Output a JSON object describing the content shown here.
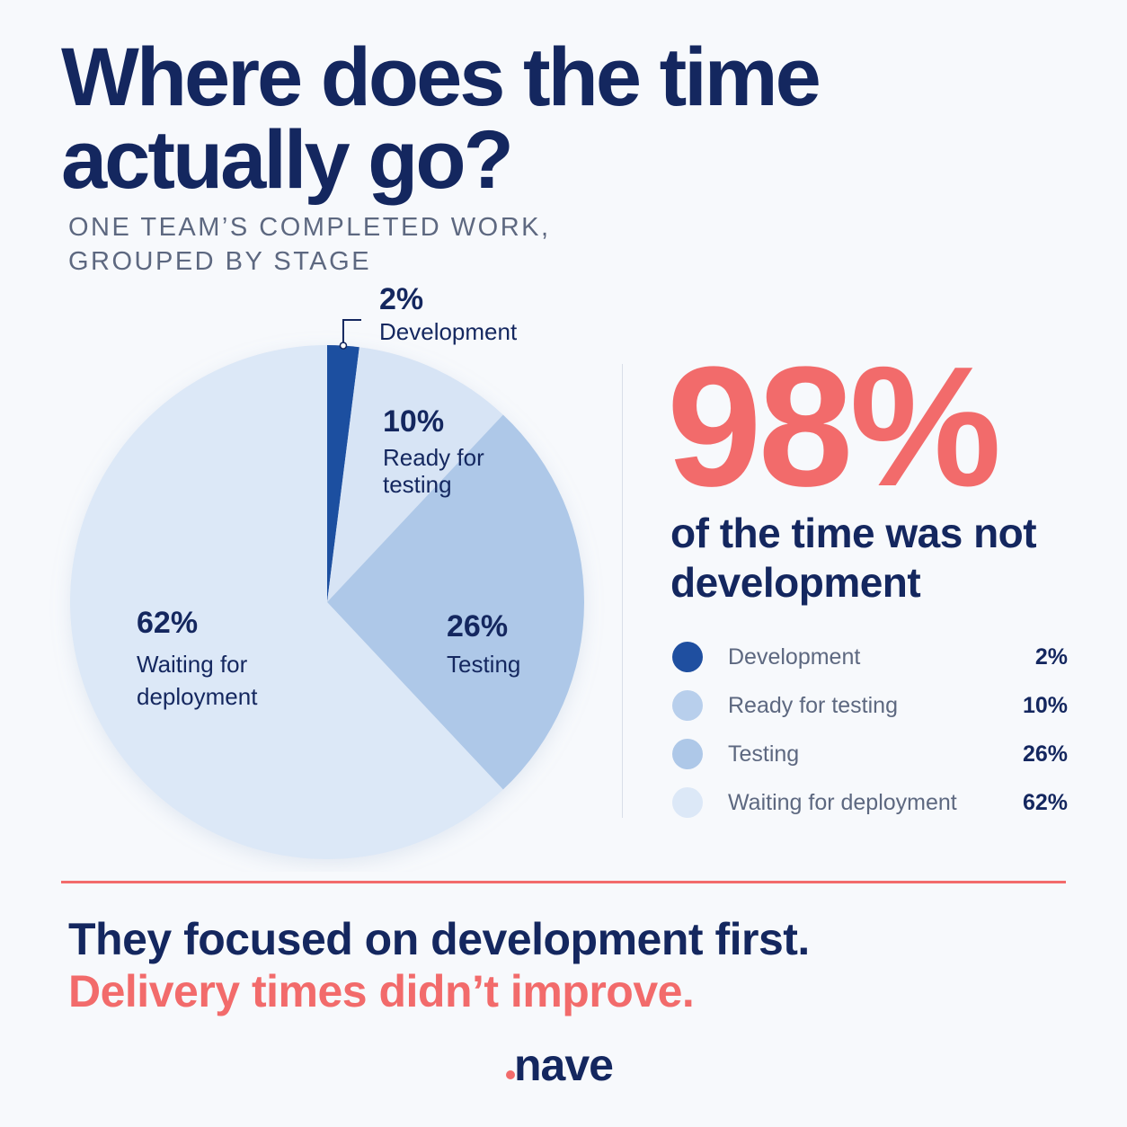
{
  "title": "Where does the time actually go?",
  "subtitle_line1": "ONE TEAM’S COMPLETED WORK,",
  "subtitle_line2": "GROUPED BY STAGE",
  "chart_data": {
    "type": "pie",
    "categories": [
      "Development",
      "Ready for testing",
      "Testing",
      "Waiting for deployment"
    ],
    "values": [
      2,
      10,
      26,
      62
    ],
    "value_labels": [
      "2%",
      "10%",
      "26%",
      "62%"
    ],
    "slice_labels": [
      [
        "Development"
      ],
      [
        "Ready for",
        "testing"
      ],
      [
        "Testing"
      ],
      [
        "Waiting for",
        "deployment"
      ]
    ],
    "colors": [
      "#1f4fa0",
      "#d7e4f5",
      "#aec8e8",
      "#dce8f7"
    ],
    "start_angle_deg": 0,
    "direction": "clockwise"
  },
  "highlight": {
    "value": "98%",
    "caption": "of the time was not development"
  },
  "legend": [
    {
      "label": "Development",
      "value": "2%",
      "color": "#1f4fa0"
    },
    {
      "label": "Ready for testing",
      "value": "10%",
      "color": "#b8cfec"
    },
    {
      "label": "Testing",
      "value": "26%",
      "color": "#aec8e8"
    },
    {
      "label": "Waiting for deployment",
      "value": "62%",
      "color": "#dce8f7"
    }
  ],
  "footer": {
    "line1": "They focused on development first.",
    "line2": "Delivery times didn’t improve."
  },
  "brand": {
    "name": "nave",
    "color_primary": "#14275f",
    "color_accent": "#f26b6b"
  }
}
